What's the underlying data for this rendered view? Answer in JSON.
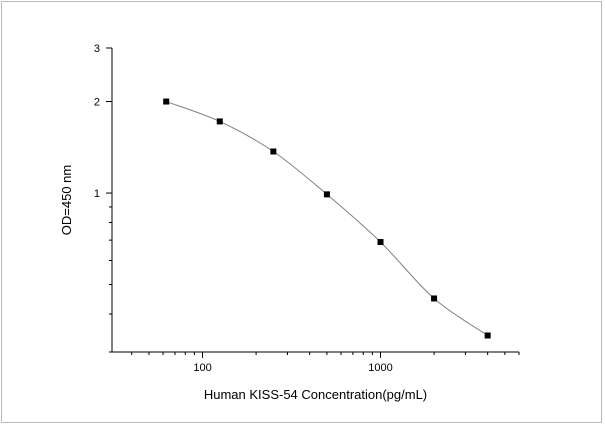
{
  "chart_data": {
    "type": "line",
    "title": "",
    "xlabel": "Human KISS-54  Concentration(pg/mL)",
    "ylabel": "OD=450 nm",
    "x_scale": "log",
    "y_scale": "log",
    "xlim": [
      31,
      6000
    ],
    "ylim": [
      0.3,
      3
    ],
    "x_ticks": [
      100,
      1000
    ],
    "x_tick_labels": [
      "100",
      "1000"
    ],
    "y_ticks": [
      1,
      2,
      3
    ],
    "y_tick_labels": [
      "1",
      "2",
      "3"
    ],
    "grid": false,
    "legend": "none",
    "series": [
      {
        "x": [
          62.5,
          125,
          250,
          500,
          1000,
          2000,
          4000
        ],
        "y": [
          2.0,
          1.72,
          1.37,
          0.99,
          0.69,
          0.45,
          0.34
        ]
      }
    ],
    "colors": {
      "line": "#808080",
      "marker": "#000000",
      "axis": "#000000"
    }
  }
}
